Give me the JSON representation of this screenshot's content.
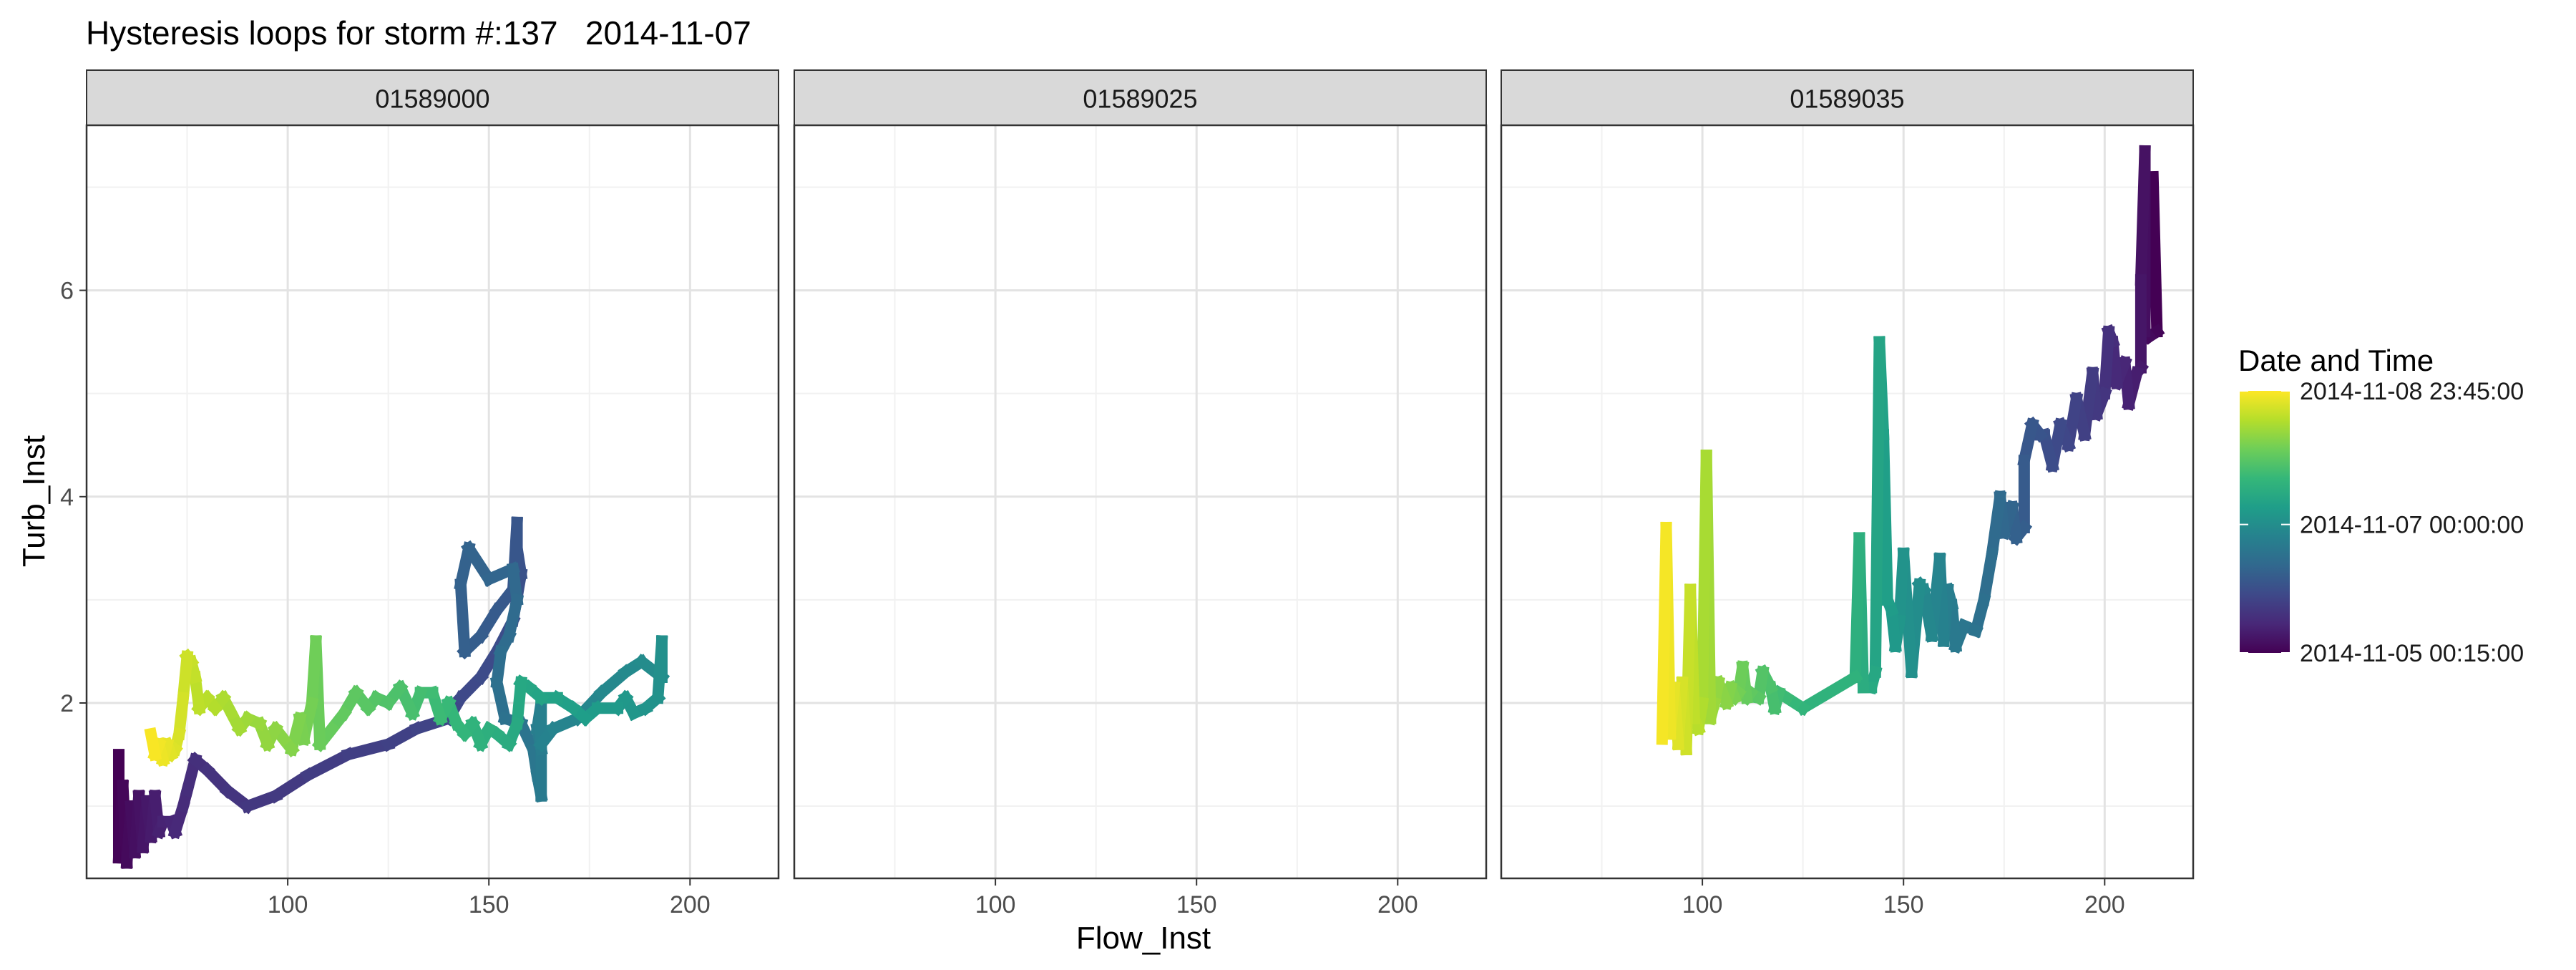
{
  "chart_data": {
    "type": "line",
    "title": "Hysteresis loops for storm #:137   2014-11-07",
    "xlabel": "Flow_Inst",
    "ylabel": "Turb_Inst",
    "xlim": [
      50,
      222
    ],
    "ylim": [
      0.3,
      7.6
    ],
    "x_ticks": [
      100,
      150,
      200
    ],
    "y_ticks": [
      2,
      4,
      6
    ],
    "grid": true,
    "legend": {
      "title": "Date and Time",
      "position": "right",
      "labels": [
        {
          "label": "2014-11-08 23:45:00",
          "t": 1.0
        },
        {
          "label": "2014-11-07 00:00:00",
          "t": 0.49
        },
        {
          "label": "2014-11-05 00:15:00",
          "t": 0.0
        }
      ],
      "colormap": "viridis",
      "colors": [
        "#440154",
        "#482878",
        "#3e4989",
        "#31688e",
        "#26828e",
        "#1f9e89",
        "#35b779",
        "#6ece58",
        "#b5de2b",
        "#fde725"
      ]
    },
    "panels": [
      {
        "name": "01589000",
        "points": [
          [
            58,
            1.5
          ],
          [
            58,
            0.5
          ],
          [
            59,
            1.2
          ],
          [
            60,
            0.45
          ],
          [
            61,
            1.0
          ],
          [
            62,
            0.55
          ],
          [
            63,
            1.1
          ],
          [
            64,
            0.6
          ],
          [
            65,
            1.05
          ],
          [
            66,
            0.7
          ],
          [
            67,
            1.1
          ],
          [
            68,
            0.75
          ],
          [
            69,
            0.85
          ],
          [
            71,
            0.85
          ],
          [
            72,
            0.75
          ],
          [
            74,
            1.0
          ],
          [
            75,
            1.15
          ],
          [
            77,
            1.45
          ],
          [
            80,
            1.35
          ],
          [
            85,
            1.15
          ],
          [
            90,
            1.0
          ],
          [
            97,
            1.1
          ],
          [
            105,
            1.3
          ],
          [
            115,
            1.5
          ],
          [
            125,
            1.6
          ],
          [
            132,
            1.75
          ],
          [
            140,
            1.85
          ],
          [
            143,
            2.05
          ],
          [
            148,
            2.25
          ],
          [
            152,
            2.5
          ],
          [
            156,
            2.8
          ],
          [
            158,
            3.25
          ],
          [
            157,
            3.5
          ],
          [
            157,
            3.75
          ],
          [
            156,
            3.1
          ],
          [
            152,
            2.9
          ],
          [
            148,
            2.65
          ],
          [
            144,
            2.5
          ],
          [
            143,
            3.15
          ],
          [
            145,
            3.5
          ],
          [
            150,
            3.2
          ],
          [
            156,
            3.3
          ],
          [
            157,
            3.0
          ],
          [
            155,
            2.65
          ],
          [
            153,
            2.5
          ],
          [
            152,
            2.2
          ],
          [
            154,
            1.85
          ],
          [
            158,
            1.8
          ],
          [
            161,
            1.55
          ],
          [
            162,
            1.3
          ],
          [
            163,
            1.1
          ],
          [
            163,
            1.55
          ],
          [
            162,
            1.75
          ],
          [
            163,
            2.0
          ],
          [
            163,
            1.6
          ],
          [
            166,
            1.75
          ],
          [
            172,
            1.85
          ],
          [
            178,
            2.1
          ],
          [
            184,
            2.3
          ],
          [
            188,
            2.4
          ],
          [
            193,
            2.25
          ],
          [
            193,
            2.6
          ],
          [
            192,
            2.05
          ],
          [
            189,
            1.95
          ],
          [
            186,
            1.9
          ],
          [
            184,
            2.05
          ],
          [
            182,
            1.95
          ],
          [
            177,
            1.95
          ],
          [
            174,
            1.85
          ],
          [
            171,
            1.95
          ],
          [
            167,
            2.05
          ],
          [
            163,
            2.05
          ],
          [
            160,
            2.15
          ],
          [
            158,
            2.2
          ],
          [
            157,
            1.8
          ],
          [
            155,
            1.6
          ],
          [
            152,
            1.7
          ],
          [
            150,
            1.75
          ],
          [
            148,
            1.6
          ],
          [
            146,
            1.8
          ],
          [
            144,
            1.7
          ],
          [
            142,
            1.8
          ],
          [
            140,
            2.0
          ],
          [
            138,
            1.85
          ],
          [
            136,
            2.1
          ],
          [
            133,
            2.1
          ],
          [
            131,
            1.9
          ],
          [
            128,
            2.15
          ],
          [
            125,
            2.0
          ],
          [
            122,
            2.05
          ],
          [
            120,
            1.95
          ],
          [
            117,
            2.1
          ],
          [
            114,
            1.9
          ],
          [
            111,
            1.75
          ],
          [
            108,
            1.6
          ],
          [
            107,
            2.6
          ],
          [
            106,
            2.0
          ],
          [
            104,
            1.65
          ],
          [
            103,
            1.85
          ],
          [
            101,
            1.55
          ],
          [
            99,
            1.65
          ],
          [
            97,
            1.75
          ],
          [
            95,
            1.6
          ],
          [
            93,
            1.8
          ],
          [
            90,
            1.85
          ],
          [
            88,
            1.75
          ],
          [
            86,
            1.9
          ],
          [
            84,
            2.05
          ],
          [
            82,
            1.95
          ],
          [
            80,
            2.05
          ],
          [
            78,
            1.95
          ],
          [
            77,
            2.25
          ],
          [
            76,
            2.4
          ],
          [
            75,
            2.45
          ],
          [
            74,
            2.05
          ],
          [
            73,
            1.7
          ],
          [
            72,
            1.55
          ],
          [
            71,
            1.5
          ],
          [
            70,
            1.6
          ],
          [
            69,
            1.45
          ],
          [
            68,
            1.6
          ],
          [
            67,
            1.5
          ],
          [
            66,
            1.7
          ]
        ]
      },
      {
        "name": "01589025",
        "points": []
      },
      {
        "name": "01589035",
        "points": [
          [
            212,
            7.1
          ],
          [
            213,
            5.6
          ],
          [
            211,
            5.55
          ],
          [
            210,
            5.6
          ],
          [
            210,
            7.35
          ],
          [
            209,
            6.1
          ],
          [
            209,
            5.25
          ],
          [
            208,
            5.2
          ],
          [
            206,
            4.9
          ],
          [
            205,
            5.3
          ],
          [
            203,
            5.1
          ],
          [
            202,
            5.5
          ],
          [
            201,
            5.6
          ],
          [
            200,
            5.0
          ],
          [
            198,
            4.8
          ],
          [
            197,
            5.2
          ],
          [
            195,
            4.6
          ],
          [
            193,
            4.95
          ],
          [
            191,
            4.5
          ],
          [
            189,
            4.7
          ],
          [
            187,
            4.3
          ],
          [
            185,
            4.6
          ],
          [
            184,
            4.6
          ],
          [
            182,
            4.7
          ],
          [
            180,
            4.35
          ],
          [
            180,
            3.7
          ],
          [
            178,
            3.6
          ],
          [
            177,
            3.9
          ],
          [
            175,
            3.65
          ],
          [
            174,
            4.0
          ],
          [
            172,
            3.45
          ],
          [
            170,
            3.0
          ],
          [
            168,
            2.7
          ],
          [
            165,
            2.75
          ],
          [
            163,
            2.55
          ],
          [
            162,
            2.95
          ],
          [
            161,
            3.1
          ],
          [
            160,
            2.6
          ],
          [
            159,
            3.4
          ],
          [
            157,
            2.65
          ],
          [
            155,
            3.1
          ],
          [
            154,
            3.15
          ],
          [
            152,
            2.3
          ],
          [
            150,
            3.45
          ],
          [
            149,
            2.8
          ],
          [
            148,
            2.55
          ],
          [
            147,
            2.9
          ],
          [
            146,
            3.0
          ],
          [
            145,
            4.6
          ],
          [
            144,
            5.5
          ],
          [
            143,
            2.3
          ],
          [
            142,
            2.15
          ],
          [
            140,
            2.15
          ],
          [
            139,
            3.6
          ],
          [
            138,
            2.25
          ],
          [
            125,
            1.95
          ],
          [
            123,
            2.0
          ],
          [
            121,
            2.05
          ],
          [
            119,
            2.1
          ],
          [
            118,
            1.95
          ],
          [
            117,
            2.15
          ],
          [
            115,
            2.3
          ],
          [
            114,
            2.05
          ],
          [
            112,
            2.1
          ],
          [
            111,
            2.05
          ],
          [
            110,
            2.35
          ],
          [
            109,
            2.1
          ],
          [
            108,
            2.05
          ],
          [
            107,
            2.15
          ],
          [
            106,
            2.0
          ],
          [
            104,
            2.2
          ],
          [
            103,
            2.0
          ],
          [
            102,
            1.85
          ],
          [
            101,
            4.4
          ],
          [
            100,
            2.0
          ],
          [
            99,
            1.75
          ],
          [
            98,
            1.85
          ],
          [
            97,
            3.1
          ],
          [
            96,
            1.55
          ],
          [
            95,
            2.2
          ],
          [
            94,
            1.6
          ],
          [
            93,
            2.15
          ],
          [
            92,
            1.7
          ],
          [
            91,
            3.7
          ],
          [
            90,
            1.65
          ]
        ]
      }
    ]
  }
}
